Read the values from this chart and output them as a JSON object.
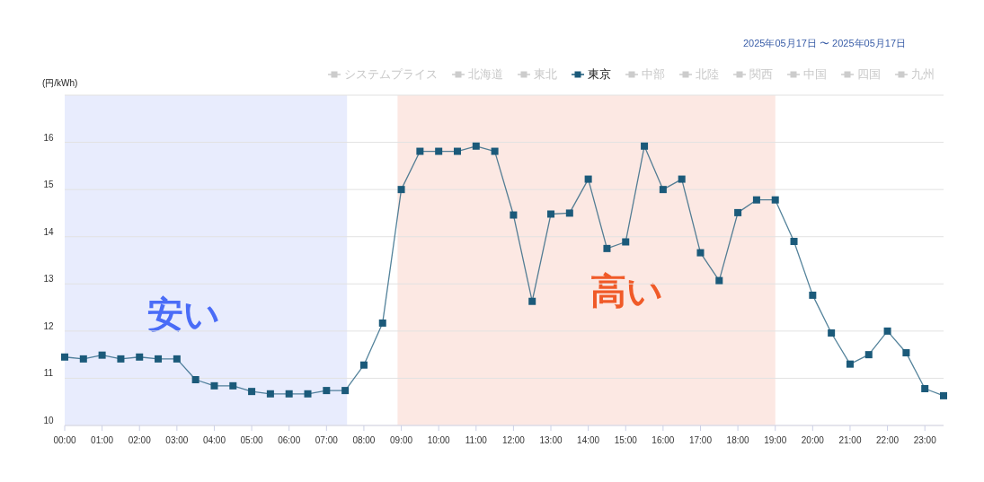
{
  "chart_data": {
    "type": "line",
    "subtitle": "2025年05月17日 〜 2025年05月17日",
    "ylabel": "(円/kWh)",
    "x": [
      0,
      0.5,
      1,
      1.5,
      2,
      2.5,
      3,
      3.5,
      4,
      4.5,
      5,
      5.5,
      6,
      6.5,
      7,
      7.5,
      8,
      8.5,
      9,
      9.5,
      10,
      10.5,
      11,
      11.5,
      12,
      12.5,
      13,
      13.5,
      14,
      14.5,
      15,
      15.5,
      16,
      16.5,
      17,
      17.5,
      18,
      18.5,
      19,
      19.5,
      20,
      20.5,
      21,
      21.5,
      22,
      22.5,
      23,
      23.5
    ],
    "series": [
      {
        "name": "システムプライス",
        "color": "#cccccc",
        "values": [
          null,
          null,
          null,
          null,
          null,
          null,
          null,
          null,
          null,
          null,
          null,
          null,
          null,
          null,
          null,
          null,
          null,
          null,
          null,
          null,
          null,
          null,
          null,
          null,
          null,
          null,
          null,
          null,
          null,
          null,
          null,
          null,
          null,
          null,
          null,
          null,
          null,
          null,
          null,
          null,
          null,
          null,
          null,
          null,
          null,
          null,
          null,
          null
        ]
      },
      {
        "name": "北海道",
        "color": "#cccccc",
        "values": [
          null,
          null,
          null,
          null,
          null,
          null,
          null,
          null,
          null,
          null,
          null,
          null,
          null,
          null,
          null,
          null,
          null,
          null,
          null,
          null,
          null,
          null,
          null,
          null,
          null,
          null,
          null,
          null,
          null,
          null,
          null,
          null,
          null,
          null,
          null,
          null,
          null,
          null,
          null,
          null,
          null,
          null,
          null,
          null,
          null,
          null,
          null,
          null
        ]
      },
      {
        "name": "東北",
        "color": "#cccccc",
        "values": [
          null,
          null,
          null,
          null,
          null,
          null,
          null,
          null,
          null,
          null,
          null,
          null,
          null,
          null,
          null,
          null,
          null,
          null,
          null,
          null,
          null,
          null,
          null,
          null,
          null,
          null,
          null,
          null,
          null,
          null,
          null,
          null,
          null,
          null,
          null,
          null,
          null,
          null,
          null,
          null,
          null,
          null,
          null,
          null,
          null,
          null,
          null,
          null
        ]
      },
      {
        "name": "東京",
        "color": "#1b5a7a",
        "values": [
          11.45,
          11.41,
          11.49,
          11.41,
          11.45,
          11.41,
          11.41,
          10.97,
          10.84,
          10.84,
          10.72,
          10.67,
          10.67,
          10.67,
          10.74,
          10.74,
          11.28,
          12.17,
          15.0,
          15.81,
          15.81,
          15.81,
          15.92,
          15.81,
          14.46,
          12.63,
          14.48,
          14.5,
          15.22,
          13.75,
          13.89,
          15.92,
          15.0,
          15.22,
          13.66,
          13.07,
          14.51,
          14.78,
          14.78,
          13.9,
          12.76,
          11.96,
          11.3,
          11.5,
          12.0,
          11.54,
          10.78,
          10.63
        ]
      },
      {
        "name": "中部",
        "color": "#cccccc",
        "values": [
          null,
          null,
          null,
          null,
          null,
          null,
          null,
          null,
          null,
          null,
          null,
          null,
          null,
          null,
          null,
          null,
          null,
          null,
          null,
          null,
          null,
          null,
          null,
          null,
          null,
          null,
          null,
          null,
          null,
          null,
          null,
          null,
          null,
          null,
          null,
          null,
          null,
          null,
          null,
          null,
          null,
          null,
          null,
          null,
          null,
          null,
          null,
          null
        ]
      },
      {
        "name": "北陸",
        "color": "#cccccc",
        "values": [
          null,
          null,
          null,
          null,
          null,
          null,
          null,
          null,
          null,
          null,
          null,
          null,
          null,
          null,
          null,
          null,
          null,
          null,
          null,
          null,
          null,
          null,
          null,
          null,
          null,
          null,
          null,
          null,
          null,
          null,
          null,
          null,
          null,
          null,
          null,
          null,
          null,
          null,
          null,
          null,
          null,
          null,
          null,
          null,
          null,
          null,
          null,
          null
        ]
      },
      {
        "name": "関西",
        "color": "#cccccc",
        "values": [
          null,
          null,
          null,
          null,
          null,
          null,
          null,
          null,
          null,
          null,
          null,
          null,
          null,
          null,
          null,
          null,
          null,
          null,
          null,
          null,
          null,
          null,
          null,
          null,
          null,
          null,
          null,
          null,
          null,
          null,
          null,
          null,
          null,
          null,
          null,
          null,
          null,
          null,
          null,
          null,
          null,
          null,
          null,
          null,
          null,
          null,
          null,
          null
        ]
      },
      {
        "name": "中国",
        "color": "#cccccc",
        "values": [
          null,
          null,
          null,
          null,
          null,
          null,
          null,
          null,
          null,
          null,
          null,
          null,
          null,
          null,
          null,
          null,
          null,
          null,
          null,
          null,
          null,
          null,
          null,
          null,
          null,
          null,
          null,
          null,
          null,
          null,
          null,
          null,
          null,
          null,
          null,
          null,
          null,
          null,
          null,
          null,
          null,
          null,
          null,
          null,
          null,
          null,
          null,
          null
        ]
      },
      {
        "name": "四国",
        "color": "#cccccc",
        "values": [
          null,
          null,
          null,
          null,
          null,
          null,
          null,
          null,
          null,
          null,
          null,
          null,
          null,
          null,
          null,
          null,
          null,
          null,
          null,
          null,
          null,
          null,
          null,
          null,
          null,
          null,
          null,
          null,
          null,
          null,
          null,
          null,
          null,
          null,
          null,
          null,
          null,
          null,
          null,
          null,
          null,
          null,
          null,
          null,
          null,
          null,
          null,
          null
        ]
      },
      {
        "name": "九州",
        "color": "#cccccc",
        "values": [
          null,
          null,
          null,
          null,
          null,
          null,
          null,
          null,
          null,
          null,
          null,
          null,
          null,
          null,
          null,
          null,
          null,
          null,
          null,
          null,
          null,
          null,
          null,
          null,
          null,
          null,
          null,
          null,
          null,
          null,
          null,
          null,
          null,
          null,
          null,
          null,
          null,
          null,
          null,
          null,
          null,
          null,
          null,
          null,
          null,
          null,
          null,
          null
        ]
      }
    ],
    "xlim": [
      0,
      23.5
    ],
    "xticks": [
      {
        "value": 0,
        "label": "00:00"
      },
      {
        "value": 1,
        "label": "01:00"
      },
      {
        "value": 2,
        "label": "02:00"
      },
      {
        "value": 3,
        "label": "03:00"
      },
      {
        "value": 4,
        "label": "04:00"
      },
      {
        "value": 5,
        "label": "05:00"
      },
      {
        "value": 6,
        "label": "06:00"
      },
      {
        "value": 7,
        "label": "07:00"
      },
      {
        "value": 8,
        "label": "08:00"
      },
      {
        "value": 9,
        "label": "09:00"
      },
      {
        "value": 10,
        "label": "10:00"
      },
      {
        "value": 11,
        "label": "11:00"
      },
      {
        "value": 12,
        "label": "12:00"
      },
      {
        "value": 13,
        "label": "13:00"
      },
      {
        "value": 14,
        "label": "14:00"
      },
      {
        "value": 15,
        "label": "15:00"
      },
      {
        "value": 16,
        "label": "16:00"
      },
      {
        "value": 17,
        "label": "17:00"
      },
      {
        "value": 18,
        "label": "18:00"
      },
      {
        "value": 19,
        "label": "19:00"
      },
      {
        "value": 20,
        "label": "20:00"
      },
      {
        "value": 21,
        "label": "21:00"
      },
      {
        "value": 22,
        "label": "22:00"
      },
      {
        "value": 23,
        "label": "23:00"
      }
    ],
    "ylim": [
      10,
      17
    ],
    "yticks": [
      10,
      11,
      12,
      13,
      14,
      15,
      16,
      {
        "value": 17,
        "label": null
      }
    ],
    "bands": [
      {
        "axis": "x",
        "from": 0,
        "to": 7.55,
        "label": "安い",
        "color": "#e8ecfd"
      },
      {
        "axis": "x",
        "from": 8.9,
        "to": 19,
        "label": "高い",
        "color": "#fce8e3"
      }
    ],
    "grid": "y",
    "legend": "top right",
    "marker": "square",
    "line_style": "solid"
  }
}
